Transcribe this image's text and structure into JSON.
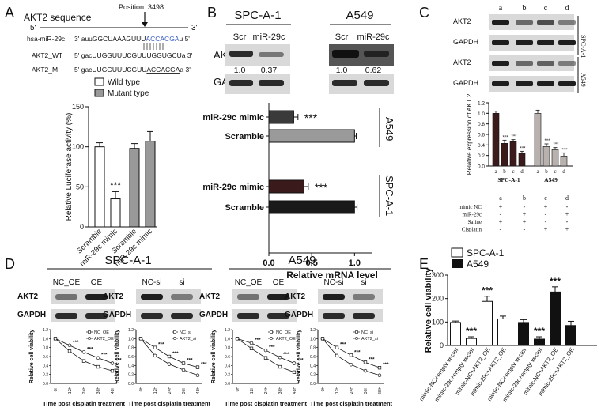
{
  "panels": {
    "A": "A",
    "B": "B",
    "C": "C",
    "D": "D",
    "E": "E"
  },
  "A": {
    "title": "AKT2 sequence",
    "position": "Position: 3498",
    "five": "5'",
    "three": "3'",
    "seq": [
      {
        "label": "hsa-miR-29c",
        "s": "3' auuGGCUAAAGUUU",
        "hl": "ACCACGA",
        "e": "u 5'"
      },
      {
        "label": "AKT2_WT",
        "s": "5' gacUUGGUUUCGUU",
        "hl": "UGGUGCU",
        "e": "a 3'"
      },
      {
        "label": "AKT2_M",
        "s": "5' gacUUGGUUUCGUU",
        "hl": "ACCACGA",
        "e": "a 3'"
      }
    ],
    "legend": [
      "Wild type",
      "Mutant type"
    ],
    "ylabel": "Relative Luciferase activity (%)",
    "stars": "***",
    "chart_data": {
      "type": "bar",
      "categories": [
        "Scramble",
        "miR-29c mimic",
        "Scramble",
        "miR-29c mimic"
      ],
      "values": [
        100,
        35,
        98,
        107
      ],
      "errors": [
        5,
        9,
        6,
        12
      ],
      "fills": [
        "#ffffff",
        "#ffffff",
        "#999999",
        "#999999"
      ],
      "ylim": [
        0,
        150
      ],
      "yticks": [
        0,
        50,
        100,
        150
      ]
    }
  },
  "B": {
    "cells": [
      "SPC-A-1",
      "A549"
    ],
    "lanes": [
      "Scr",
      "miR-29c",
      "Scr",
      "miR-29c"
    ],
    "akt2": "AKT2",
    "gapdh": "GAPDH",
    "quant": [
      "1.0",
      "0.37",
      "1.0",
      "0.62"
    ],
    "xlabel": "Relative mRNA level",
    "stars": "***",
    "chart_data": {
      "type": "bar",
      "orientation": "horizontal",
      "categories": [
        "miR-29c mimic",
        "Scramble",
        "miR-29c mimic",
        "Scramble"
      ],
      "groups": [
        "A549",
        "A549",
        "SPC-A-1",
        "SPC-A-1"
      ],
      "values": [
        0.29,
        1.0,
        0.41,
        1.0
      ],
      "errors": [
        0.05,
        0.02,
        0.05,
        0.03
      ],
      "fills": [
        "#3a3a3a",
        "#9a9a9a",
        "#3a1a1a",
        "#1a1a1a"
      ],
      "xlim": [
        0,
        1.2
      ],
      "xticks": [
        "0.0",
        "0.5",
        "1.0"
      ]
    }
  },
  "C": {
    "lanes": [
      "a",
      "b",
      "c",
      "d"
    ],
    "blots": [
      "AKT2",
      "GAPDH",
      "AKT2",
      "GAPDH"
    ],
    "cells": [
      "SPC-A-1",
      "A549"
    ],
    "ylabel": "Relative expression of AKT 2",
    "stars": "***",
    "chart_data": {
      "type": "bar",
      "groups": [
        "SPC-A-1",
        "A549"
      ],
      "categories": [
        "a",
        "b",
        "c",
        "d"
      ],
      "series": [
        {
          "values": [
            1.0,
            0.43,
            0.46,
            0.24
          ],
          "errors": [
            0.04,
            0.06,
            0.04,
            0.04
          ]
        },
        {
          "values": [
            1.0,
            0.37,
            0.31,
            0.19
          ],
          "errors": [
            0.06,
            0.05,
            0.04,
            0.06
          ]
        }
      ],
      "fills": [
        "#3a1a1a",
        "#b9b1ad"
      ],
      "ylim": [
        0,
        1.2
      ],
      "yticks": [
        "0.0",
        "0.2",
        "0.4",
        "0.6",
        "0.8",
        "1.0",
        "1.2"
      ]
    },
    "table": {
      "cols": [
        "a",
        "b",
        "c",
        "d"
      ],
      "rows": [
        {
          "label": "mimic NC",
          "v": [
            "+",
            "-",
            "+",
            "-"
          ]
        },
        {
          "label": "miR-29c",
          "v": [
            "-",
            "+",
            "-",
            "+"
          ]
        },
        {
          "label": "Saline",
          "v": [
            "+",
            "+",
            "-",
            "-"
          ]
        },
        {
          "label": "Cisplatin",
          "v": [
            "-",
            "-",
            "+",
            "+"
          ]
        }
      ]
    }
  },
  "D": {
    "cells": [
      "SPC-A-1",
      "A549"
    ],
    "blots": [
      {
        "lanes": [
          "NC_OE",
          "OE"
        ],
        "a": "AKT2",
        "g": "GAPDH"
      },
      {
        "lanes": [
          "NC-si",
          "si"
        ],
        "a": "AKT2",
        "g": "GAPDH"
      },
      {
        "lanes": [
          "NC_OE",
          "OE"
        ],
        "a": "AKT2",
        "g": "GAPDH"
      },
      {
        "lanes": [
          "NC-si",
          "si"
        ],
        "a": "AKT2",
        "g": "GAPDH"
      }
    ],
    "ylabel": "Relative cell viability",
    "xlabel": "Time post cisplatin treatment",
    "ticks": [
      "0H",
      "12H",
      "24H",
      "36H",
      "48H"
    ],
    "ticks_b": [
      "0H",
      "12H",
      "24H",
      "36H",
      "48H"
    ],
    "ticks_d": [
      "0H",
      "12H",
      "24H",
      "36H",
      "48 H"
    ],
    "yticks": [
      "0.0",
      "0.2",
      "0.4",
      "0.6",
      "0.8",
      "1.0",
      "1.2"
    ],
    "legends": [
      [
        "NC_OE",
        "AKT2_OE"
      ],
      [
        "NC_si",
        "AKT2_si"
      ],
      [
        "NC_OE",
        "AKT2_OE"
      ],
      [
        "NC_si",
        "AKT2_si"
      ]
    ],
    "stars": "***",
    "chart_data": [
      {
        "type": "line",
        "x": [
          0,
          12,
          24,
          36,
          48
        ],
        "series": [
          {
            "values": [
              1.0,
              0.72,
              0.5,
              0.37,
              0.28
            ]
          },
          {
            "values": [
              1.0,
              0.85,
              0.7,
              0.57,
              0.45
            ]
          }
        ]
      },
      {
        "type": "line",
        "x": [
          0,
          12,
          24,
          36,
          48
        ],
        "series": [
          {
            "values": [
              1.0,
              0.8,
              0.6,
              0.45,
              0.36
            ]
          },
          {
            "values": [
              1.0,
              0.62,
              0.43,
              0.3,
              0.18
            ]
          }
        ]
      },
      {
        "type": "line",
        "x": [
          0,
          12,
          24,
          36,
          48
        ],
        "series": [
          {
            "values": [
              1.0,
              0.78,
              0.57,
              0.37,
              0.25
            ]
          },
          {
            "values": [
              1.0,
              0.9,
              0.74,
              0.58,
              0.45
            ]
          }
        ]
      },
      {
        "type": "line",
        "x": [
          0,
          12,
          24,
          36,
          48
        ],
        "series": [
          {
            "values": [
              1.0,
              0.8,
              0.63,
              0.47,
              0.35
            ]
          },
          {
            "values": [
              1.0,
              0.62,
              0.42,
              0.28,
              0.18
            ]
          }
        ]
      }
    ]
  },
  "E": {
    "legend": [
      "SPC-A-1",
      "A549"
    ],
    "ylabel": "Relative cell viability",
    "stars": "***",
    "chart_data": {
      "type": "bar",
      "categories": [
        "mimic-NC+empty vector",
        "mimic-29c+empty vector",
        "mimic-NC+AKT2_OE",
        "mimic-29c+AKT2_OE",
        "mimic-NC+empty vector",
        "mimic-29c+empty vector",
        "mimic-NC+AKT2_OE",
        "mimic-29c+AKT2_OE"
      ],
      "values": [
        98,
        30,
        188,
        113,
        98,
        27,
        228,
        85
      ],
      "errors": [
        6,
        7,
        22,
        12,
        12,
        10,
        22,
        18
      ],
      "fills": [
        "#ffffff",
        "#ffffff",
        "#ffffff",
        "#ffffff",
        "#111111",
        "#111111",
        "#111111",
        "#111111"
      ],
      "ylim": [
        0,
        300
      ],
      "yticks": [
        "0",
        "100",
        "200",
        "300"
      ]
    }
  }
}
